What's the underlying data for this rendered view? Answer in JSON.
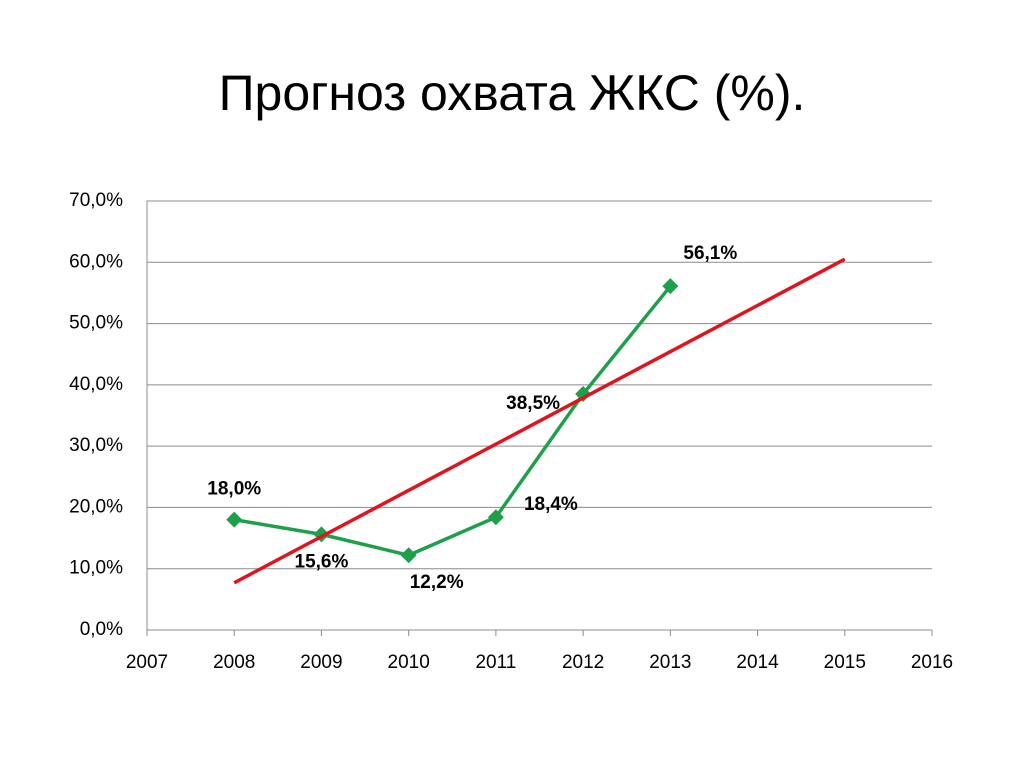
{
  "chart_data": {
    "type": "line",
    "title": "Прогноз охвата ЖКС (%).",
    "xlim": [
      2007,
      2016
    ],
    "xticks": [
      2007,
      2008,
      2009,
      2010,
      2011,
      2012,
      2013,
      2014,
      2015,
      2016
    ],
    "ylim": [
      0,
      70
    ],
    "yticks": [
      {
        "value": 0,
        "label": "0,0%"
      },
      {
        "value": 10,
        "label": "10,0%"
      },
      {
        "value": 20,
        "label": "20,0%"
      },
      {
        "value": 30,
        "label": "30,0%"
      },
      {
        "value": 40,
        "label": "40,0%"
      },
      {
        "value": 50,
        "label": "50,0%"
      },
      {
        "value": 60,
        "label": "60,0%"
      },
      {
        "value": 70,
        "label": "70,0%"
      }
    ],
    "grid": true,
    "series": [
      {
        "color": "#1ea04a",
        "marker": "diamond",
        "x": [
          2008,
          2009,
          2010,
          2011,
          2012,
          2013
        ],
        "values": [
          18.0,
          15.6,
          12.2,
          18.4,
          38.5,
          56.1
        ],
        "value_labels": [
          "18,0%",
          "15,6%",
          "12,2%",
          "18,4%",
          "38,5%",
          "56,1%"
        ]
      },
      {
        "color": "#e0141e",
        "x": [
          2008,
          2015
        ],
        "values": [
          7.7,
          60.5
        ]
      }
    ]
  }
}
